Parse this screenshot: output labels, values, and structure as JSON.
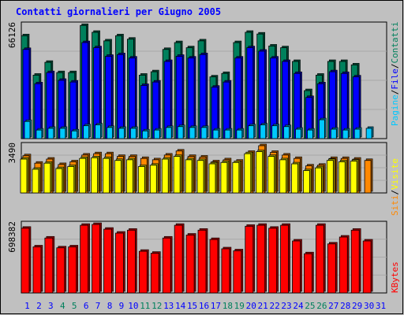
{
  "chart_data": [
    {
      "type": "bar",
      "title": "Contatti giornalieri per Giugno 2005",
      "ylabel_max": "66126",
      "ylim": [
        0,
        66126
      ],
      "legend": [
        "Pagine",
        "File",
        "Contatti"
      ],
      "x": [
        "1",
        "2",
        "3",
        "4",
        "5",
        "6",
        "7",
        "8",
        "9",
        "10",
        "11",
        "12",
        "13",
        "14",
        "15",
        "16",
        "17",
        "18",
        "19",
        "20",
        "21",
        "22",
        "23",
        "24",
        "25",
        "26",
        "27",
        "28",
        "29",
        "30",
        "31"
      ],
      "weekend_days": [
        "4",
        "5",
        "11",
        "12",
        "18",
        "19",
        "25",
        "26"
      ],
      "series": [
        {
          "name": "Contatti",
          "values": [
            60000,
            37000,
            44500,
            38500,
            38500,
            66000,
            62000,
            57000,
            60000,
            58000,
            37000,
            39000,
            52000,
            56000,
            53000,
            57000,
            36000,
            38000,
            56000,
            62000,
            61000,
            54000,
            53000,
            45000,
            28000,
            37000,
            45000,
            45000,
            43000,
            null,
            null
          ]
        },
        {
          "name": "File",
          "values": [
            52000,
            32000,
            38500,
            34000,
            33000,
            56000,
            53000,
            48000,
            49000,
            47000,
            31000,
            33000,
            45000,
            48000,
            47000,
            49000,
            30000,
            33000,
            47000,
            53000,
            51000,
            47000,
            45000,
            38000,
            24000,
            32000,
            39000,
            38000,
            36000,
            null,
            null
          ]
        },
        {
          "name": "Pagine",
          "values": [
            10000,
            5000,
            6000,
            6000,
            4500,
            7500,
            8000,
            6500,
            6000,
            6000,
            4500,
            5000,
            6500,
            7000,
            6500,
            6500,
            5000,
            5000,
            5000,
            7500,
            8000,
            7500,
            7000,
            5500,
            5000,
            11000,
            5500,
            5000,
            5500,
            6000,
            null
          ]
        }
      ]
    },
    {
      "type": "bar",
      "ylabel_max": "3490",
      "ylim": [
        0,
        3490
      ],
      "legend": [
        "Siti",
        "Visite"
      ],
      "x": [
        "1",
        "2",
        "3",
        "4",
        "5",
        "6",
        "7",
        "8",
        "9",
        "10",
        "11",
        "12",
        "13",
        "14",
        "15",
        "16",
        "17",
        "18",
        "19",
        "20",
        "21",
        "22",
        "23",
        "24",
        "25",
        "26",
        "27",
        "28",
        "29",
        "30",
        "31"
      ],
      "series": [
        {
          "name": "Visite",
          "values": [
            2750,
            2200,
            2500,
            2100,
            2300,
            2800,
            2900,
            2900,
            2700,
            2700,
            2550,
            2450,
            2800,
            3100,
            2700,
            2650,
            2300,
            2450,
            2350,
            3000,
            3490,
            3000,
            2800,
            2550,
            2000,
            2050,
            2550,
            2550,
            2500,
            2400,
            null
          ]
        },
        {
          "name": "Siti",
          "values": [
            2500,
            1750,
            2200,
            1800,
            1950,
            2550,
            2600,
            2550,
            2400,
            2450,
            1950,
            2050,
            2500,
            2700,
            2450,
            2400,
            2150,
            2250,
            2250,
            2900,
            3050,
            2700,
            2450,
            2150,
            1650,
            1850,
            2400,
            2300,
            2350,
            null,
            null
          ]
        }
      ]
    },
    {
      "type": "bar",
      "ylabel_max": "698382",
      "ylim": [
        0,
        698382
      ],
      "legend": [
        "KBytes"
      ],
      "x": [
        "1",
        "2",
        "3",
        "4",
        "5",
        "6",
        "7",
        "8",
        "9",
        "10",
        "11",
        "12",
        "13",
        "14",
        "15",
        "16",
        "17",
        "18",
        "19",
        "20",
        "21",
        "22",
        "23",
        "24",
        "25",
        "26",
        "27",
        "28",
        "29",
        "30",
        "31"
      ],
      "series": [
        {
          "name": "KBytes",
          "values": [
            660000,
            470000,
            560000,
            460000,
            470000,
            690000,
            698382,
            650000,
            610000,
            640000,
            425000,
            405000,
            560000,
            690000,
            590000,
            640000,
            545000,
            450000,
            430000,
            680000,
            690000,
            660000,
            690000,
            530000,
            400000,
            690000,
            500000,
            570000,
            640000,
            530000,
            null
          ]
        }
      ]
    }
  ],
  "colors": {
    "plot_bg": "#c0c0c0",
    "outer_bg": "#c0c0c0",
    "contatti": "#00805c",
    "file": "#0000ff",
    "pagine": "#00c8ff",
    "visite": "#ff8800",
    "siti": "#ffff00",
    "kbytes": "#ff0000",
    "title": "#0000ff",
    "weekday_label": "#0000ff",
    "weekend_label": "#00805c"
  }
}
